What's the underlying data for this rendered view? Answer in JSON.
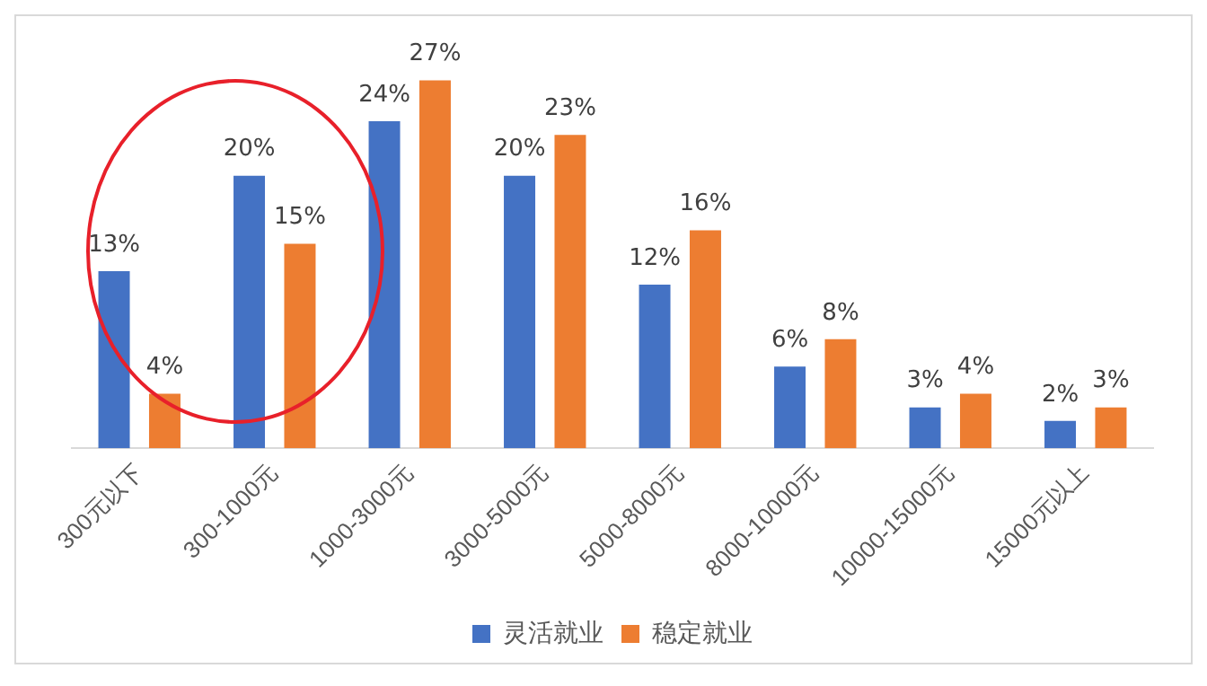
{
  "chart_data": {
    "type": "bar",
    "categories": [
      "300元以下",
      "300-1000元",
      "1000-3000元",
      "3000-5000元",
      "5000-8000元",
      "8000-10000元",
      "10000-15000元",
      "15000元以上"
    ],
    "series": [
      {
        "name": "灵活就业",
        "color": "#4472c4",
        "values": [
          13,
          20,
          24,
          20,
          12,
          6,
          3,
          2
        ],
        "value_labels": [
          "13%",
          "20%",
          "24%",
          "20%",
          "12%",
          "6%",
          "3%",
          "2%"
        ]
      },
      {
        "name": "稳定就业",
        "color": "#ed7d31",
        "values": [
          4,
          15,
          27,
          23,
          16,
          8,
          4,
          3
        ],
        "value_labels": [
          "4%",
          "15%",
          "27%",
          "23%",
          "16%",
          "8%",
          "4%",
          "3%"
        ]
      }
    ],
    "legend": "bottom",
    "grid": false
  }
}
